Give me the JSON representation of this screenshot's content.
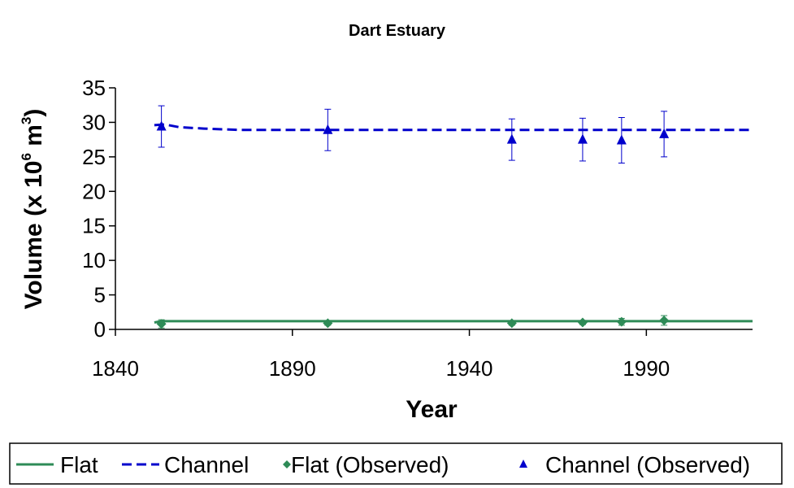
{
  "chart_data": {
    "type": "line",
    "title": "Dart Estuary",
    "xlabel": "Year",
    "ylabel": {
      "prefix": "Volume (x 10",
      "exponent1": "6",
      "middle": " m",
      "exponent2": "3",
      "suffix": ")"
    },
    "xlim": [
      1840,
      2020
    ],
    "ylim": [
      0,
      35
    ],
    "xticks": [
      1840,
      1890,
      1940,
      1990
    ],
    "yticks": [
      0,
      5,
      10,
      15,
      20,
      25,
      30,
      35
    ],
    "grid": false,
    "legend_position": "bottom",
    "series": [
      {
        "name": "Flat",
        "style": "solid-line",
        "color": "#2E8B57",
        "x": [
          1851,
          1853,
          1860,
          1880,
          1920,
          1960,
          2000,
          2020
        ],
        "y": [
          1.0,
          1.2,
          1.2,
          1.2,
          1.2,
          1.2,
          1.2,
          1.2
        ]
      },
      {
        "name": "Channel",
        "style": "dashed-line",
        "color": "#0000CC",
        "x": [
          1851,
          1854,
          1858,
          1865,
          1875,
          1900,
          1950,
          2000,
          2020
        ],
        "y": [
          29.6,
          29.7,
          29.3,
          29.1,
          28.9,
          28.9,
          28.9,
          28.9,
          28.9
        ]
      },
      {
        "name": "Flat (Observed)",
        "style": "diamond-markers",
        "color": "#2E8B57",
        "x": [
          1853,
          1900,
          1952,
          1972,
          1983,
          1995
        ],
        "y": [
          0.8,
          0.9,
          0.9,
          1.0,
          1.1,
          1.3
        ],
        "error": [
          0.6,
          0.3,
          0.3,
          0.3,
          0.5,
          0.7
        ]
      },
      {
        "name": "Channel (Observed)",
        "style": "triangle-markers",
        "color": "#0000CC",
        "x": [
          1853,
          1900,
          1952,
          1972,
          1983,
          1995
        ],
        "y": [
          29.4,
          28.9,
          27.5,
          27.5,
          27.4,
          28.3
        ],
        "error": [
          3.0,
          3.0,
          3.0,
          3.1,
          3.3,
          3.3
        ]
      }
    ]
  }
}
